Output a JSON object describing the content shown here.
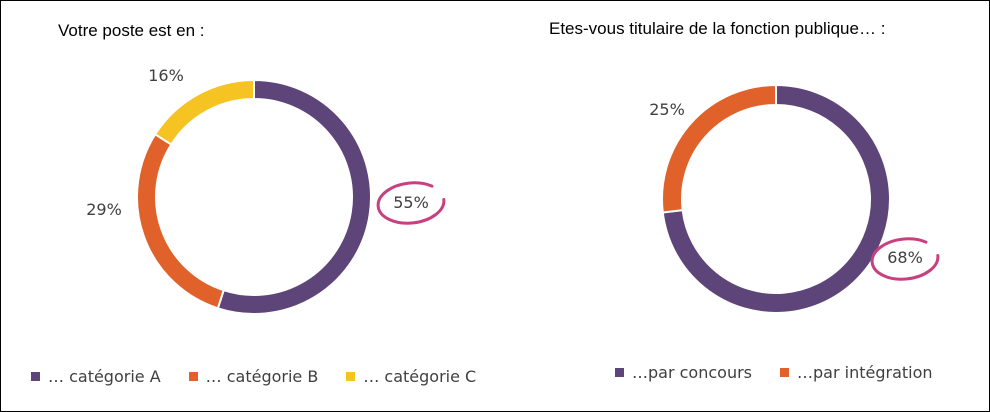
{
  "chart_data": [
    {
      "type": "donut",
      "title": "Votre poste est en :",
      "slices": [
        {
          "label": "… catégorie A",
          "value": 55,
          "display": "55%",
          "color": "#5e4579",
          "highlighted": true
        },
        {
          "label": "… catégorie B",
          "value": 29,
          "display": "29%",
          "color": "#e0622a",
          "highlighted": false
        },
        {
          "label": "… catégorie C",
          "value": 16,
          "display": "16%",
          "color": "#f5c322",
          "highlighted": false
        }
      ],
      "legend_position": "bottom"
    },
    {
      "type": "donut",
      "title": "Etes-vous titulaire de la fonction publique… :",
      "slices": [
        {
          "label": "…par concours",
          "value": 68,
          "display": "68%",
          "color": "#5e4579",
          "highlighted": true
        },
        {
          "label": "…par intégration",
          "value": 25,
          "display": "25%",
          "color": "#e0622a",
          "highlighted": false
        }
      ],
      "legend_position": "bottom"
    }
  ],
  "highlight_color": "#c8407f"
}
